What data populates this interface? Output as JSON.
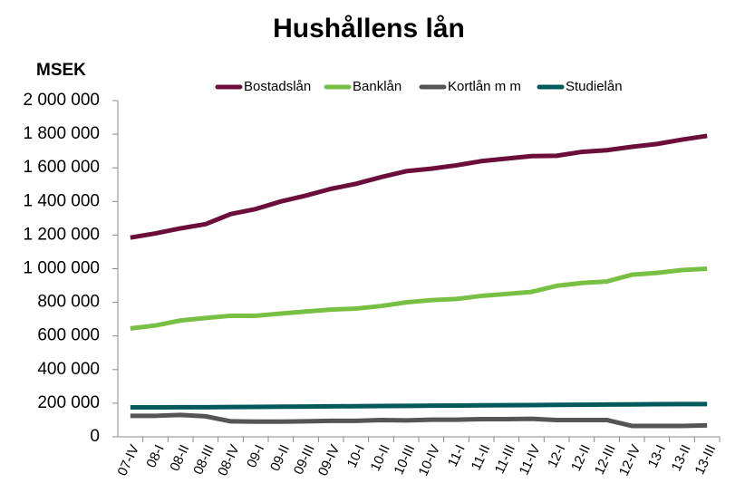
{
  "chart_data": {
    "type": "line",
    "title": "Hushållens lån",
    "y_label": "MSEK",
    "categories": [
      "07-IV",
      "08-I",
      "08-II",
      "08-III",
      "08-IV",
      "09-I",
      "09-II",
      "09-III",
      "09-IV",
      "10-I",
      "10-II",
      "10-III",
      "10-IV",
      "11-I",
      "11-II",
      "11-III",
      "11-IV",
      "12-I",
      "12-II",
      "12-III",
      "12-IV",
      "13-I",
      "13-II",
      "13-III"
    ],
    "series": [
      {
        "name": "Bostadslån",
        "color": "#6b0e3a",
        "values": [
          1185000,
          1210000,
          1240000,
          1265000,
          1325000,
          1355000,
          1400000,
          1435000,
          1475000,
          1505000,
          1545000,
          1580000,
          1595000,
          1615000,
          1640000,
          1655000,
          1670000,
          1672000,
          1695000,
          1705000,
          1725000,
          1742000,
          1768000,
          1790000
        ]
      },
      {
        "name": "Banklån",
        "color": "#77c043",
        "values": [
          645000,
          662000,
          692000,
          707000,
          720000,
          720000,
          733000,
          745000,
          757000,
          763000,
          778000,
          800000,
          813000,
          820000,
          838000,
          850000,
          862000,
          898000,
          915000,
          924000,
          964000,
          975000,
          992000,
          1000000
        ]
      },
      {
        "name": "Kortlån m m",
        "color": "#555555",
        "values": [
          125000,
          125000,
          130000,
          122000,
          92000,
          90000,
          90000,
          92000,
          95000,
          95000,
          100000,
          98000,
          102000,
          102000,
          105000,
          105000,
          107000,
          100000,
          100000,
          100000,
          65000,
          65000,
          65000,
          68000
        ]
      },
      {
        "name": "Studielån",
        "color": "#005a5a",
        "values": [
          175000,
          175000,
          176000,
          176000,
          177000,
          178000,
          179000,
          180000,
          181000,
          182000,
          183000,
          184000,
          185000,
          186000,
          187000,
          188000,
          189000,
          190000,
          191000,
          192000,
          193000,
          194000,
          195000,
          195000
        ]
      }
    ],
    "ylim": [
      0,
      2000000
    ],
    "yticks": [
      0,
      {
        "value": 200000,
        "label": "200 000"
      },
      {
        "value": 400000,
        "label": "400 000"
      },
      {
        "value": 600000,
        "label": "600 000"
      },
      {
        "value": 800000,
        "label": "800 000"
      },
      {
        "value": 1000000,
        "label": "1 000 000"
      },
      {
        "value": 1200000,
        "label": "1 200 000"
      },
      {
        "value": 1400000,
        "label": "1 400 000"
      },
      {
        "value": 1600000,
        "label": "1 600 000"
      },
      {
        "value": 1800000,
        "label": "1 800 000"
      },
      {
        "value": 2000000,
        "label": "2 000 000"
      }
    ],
    "grid": false
  }
}
